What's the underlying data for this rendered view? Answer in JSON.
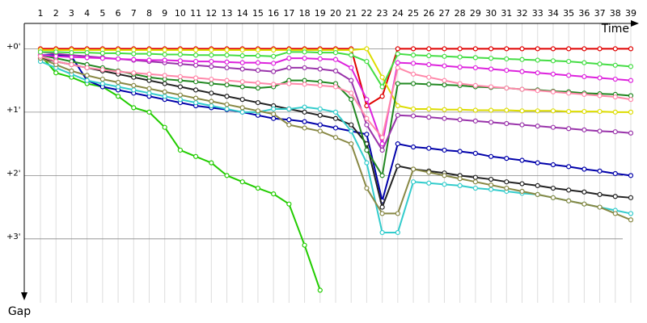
{
  "chart_data": {
    "type": "line",
    "x_label": "Time",
    "y_label": "Gap",
    "categories": [
      "1",
      "2",
      "3",
      "4",
      "5",
      "6",
      "7",
      "8",
      "9",
      "10",
      "11",
      "12",
      "13",
      "14",
      "15",
      "16",
      "17",
      "18",
      "19",
      "20",
      "21",
      "22",
      "23",
      "24",
      "25",
      "26",
      "27",
      "28",
      "29",
      "30",
      "31",
      "32",
      "33",
      "34",
      "35",
      "36",
      "37",
      "38",
      "39"
    ],
    "ylim": [
      -0.4,
      4.2
    ],
    "yticks": [
      {
        "value": 0,
        "label": "+0'"
      },
      {
        "value": 1,
        "label": "+1'"
      },
      {
        "value": 2,
        "label": "+2'"
      },
      {
        "value": 3,
        "label": "+3'"
      }
    ],
    "grid": true,
    "series": [
      {
        "color": "#e00000",
        "values": [
          0,
          0,
          0,
          0,
          0,
          0,
          0,
          0,
          0,
          0,
          0,
          0,
          0,
          0,
          0,
          0,
          0,
          0,
          0,
          0,
          0,
          0.9,
          0.75,
          0,
          0,
          0,
          0,
          0,
          0,
          0,
          0,
          0,
          0,
          0,
          0,
          0,
          0,
          0,
          0
        ]
      },
      {
        "color": "#dddd00",
        "values": [
          0.02,
          0.02,
          0.02,
          0.02,
          0.02,
          0.02,
          0.02,
          0.02,
          0.02,
          0.02,
          0.02,
          0.02,
          0.02,
          0.02,
          0.02,
          0.02,
          0.02,
          0.02,
          0.02,
          0.02,
          0.02,
          0,
          0.45,
          0.9,
          0.95,
          0.95,
          0.96,
          0.96,
          0.97,
          0.97,
          0.97,
          0.98,
          0.98,
          0.98,
          0.99,
          0.99,
          0.99,
          1.0,
          1.0
        ]
      },
      {
        "color": "#22cc00",
        "values": [
          0.1,
          0.38,
          0.45,
          0.55,
          0.6,
          0.75,
          0.93,
          1.0,
          1.24,
          1.6,
          1.7,
          1.8,
          2.0,
          2.1,
          2.2,
          2.29,
          2.45,
          3.1,
          3.81,
          null,
          null,
          null,
          null,
          null,
          null,
          null,
          null,
          null,
          null,
          null,
          null,
          null,
          null,
          null,
          null,
          null,
          null,
          null,
          null
        ]
      },
      {
        "color": "#0000aa",
        "values": [
          0.1,
          0.1,
          0.12,
          0.5,
          0.6,
          0.65,
          0.7,
          0.75,
          0.8,
          0.85,
          0.9,
          0.93,
          0.96,
          1.0,
          1.05,
          1.1,
          1.12,
          1.15,
          1.2,
          1.25,
          1.3,
          1.35,
          2.4,
          1.5,
          1.55,
          1.57,
          1.6,
          1.62,
          1.65,
          1.7,
          1.73,
          1.76,
          1.8,
          1.83,
          1.86,
          1.9,
          1.93,
          1.97,
          2.0
        ]
      },
      {
        "color": "#222222",
        "values": [
          0.15,
          0.2,
          0.25,
          0.3,
          0.35,
          0.4,
          0.45,
          0.5,
          0.55,
          0.6,
          0.65,
          0.7,
          0.75,
          0.8,
          0.85,
          0.9,
          0.95,
          1.0,
          1.05,
          1.1,
          1.2,
          1.5,
          2.5,
          1.85,
          1.9,
          1.93,
          1.96,
          2.0,
          2.03,
          2.06,
          2.1,
          2.13,
          2.16,
          2.2,
          2.23,
          2.26,
          2.3,
          2.33,
          2.35
        ]
      },
      {
        "color": "#228822",
        "values": [
          0.1,
          0.15,
          0.2,
          0.25,
          0.3,
          0.35,
          0.4,
          0.45,
          0.48,
          0.5,
          0.52,
          0.55,
          0.57,
          0.6,
          0.62,
          0.6,
          0.5,
          0.5,
          0.52,
          0.55,
          0.8,
          1.6,
          2.0,
          0.55,
          0.55,
          0.56,
          0.57,
          0.58,
          0.6,
          0.61,
          0.62,
          0.64,
          0.65,
          0.67,
          0.68,
          0.7,
          0.71,
          0.72,
          0.74
        ]
      },
      {
        "color": "#9933aa",
        "values": [
          0.05,
          0.08,
          0.1,
          0.12,
          0.14,
          0.16,
          0.18,
          0.2,
          0.22,
          0.24,
          0.26,
          0.28,
          0.3,
          0.32,
          0.34,
          0.36,
          0.3,
          0.3,
          0.32,
          0.35,
          0.5,
          1.2,
          1.6,
          1.05,
          1.06,
          1.08,
          1.1,
          1.12,
          1.14,
          1.16,
          1.18,
          1.2,
          1.22,
          1.24,
          1.26,
          1.28,
          1.3,
          1.31,
          1.33
        ]
      },
      {
        "color": "#dd22dd",
        "values": [
          0.1,
          0.12,
          0.13,
          0.14,
          0.15,
          0.16,
          0.17,
          0.18,
          0.18,
          0.19,
          0.2,
          0.2,
          0.21,
          0.22,
          0.22,
          0.23,
          0.15,
          0.15,
          0.16,
          0.17,
          0.3,
          0.8,
          1.5,
          0.22,
          0.23,
          0.25,
          0.27,
          0.29,
          0.3,
          0.32,
          0.34,
          0.36,
          0.38,
          0.4,
          0.42,
          0.44,
          0.46,
          0.48,
          0.5
        ]
      },
      {
        "color": "#33cccc",
        "values": [
          0.2,
          0.3,
          0.4,
          0.5,
          0.55,
          0.6,
          0.65,
          0.7,
          0.75,
          0.8,
          0.85,
          0.9,
          0.95,
          1.0,
          1.0,
          0.95,
          0.95,
          0.92,
          0.95,
          1.0,
          1.3,
          1.8,
          2.9,
          2.9,
          2.1,
          2.12,
          2.14,
          2.16,
          2.2,
          2.22,
          2.25,
          2.28,
          2.3,
          2.35,
          2.4,
          2.45,
          2.5,
          2.55,
          2.6
        ]
      },
      {
        "color": "#888844",
        "values": [
          0.15,
          0.25,
          0.35,
          0.42,
          0.48,
          0.53,
          0.58,
          0.63,
          0.68,
          0.73,
          0.78,
          0.83,
          0.88,
          0.93,
          0.98,
          1.03,
          1.2,
          1.25,
          1.3,
          1.4,
          1.5,
          2.2,
          2.6,
          2.6,
          1.9,
          1.95,
          2.0,
          2.05,
          2.1,
          2.15,
          2.2,
          2.25,
          2.3,
          2.35,
          2.4,
          2.45,
          2.5,
          2.6,
          2.7
        ]
      },
      {
        "color": "#ff88aa",
        "values": [
          0.12,
          0.2,
          0.25,
          0.3,
          0.33,
          0.36,
          0.38,
          0.4,
          0.42,
          0.44,
          0.46,
          0.48,
          0.5,
          0.52,
          0.54,
          0.56,
          0.55,
          0.56,
          0.58,
          0.6,
          0.7,
          1.1,
          1.4,
          0.3,
          0.4,
          0.45,
          0.5,
          0.55,
          0.58,
          0.6,
          0.62,
          0.64,
          0.66,
          0.68,
          0.7,
          0.72,
          0.74,
          0.76,
          0.8
        ]
      },
      {
        "color": "#44dd44",
        "values": [
          0.05,
          0.05,
          0.06,
          0.06,
          0.07,
          0.07,
          0.08,
          0.08,
          0.09,
          0.09,
          0.1,
          0.1,
          0.1,
          0.11,
          0.11,
          0.12,
          0.05,
          0.05,
          0.06,
          0.06,
          0.1,
          0.2,
          0.6,
          0.08,
          0.1,
          0.11,
          0.12,
          0.13,
          0.14,
          0.15,
          0.16,
          0.17,
          0.18,
          0.19,
          0.2,
          0.22,
          0.24,
          0.26,
          0.28
        ]
      }
    ]
  }
}
